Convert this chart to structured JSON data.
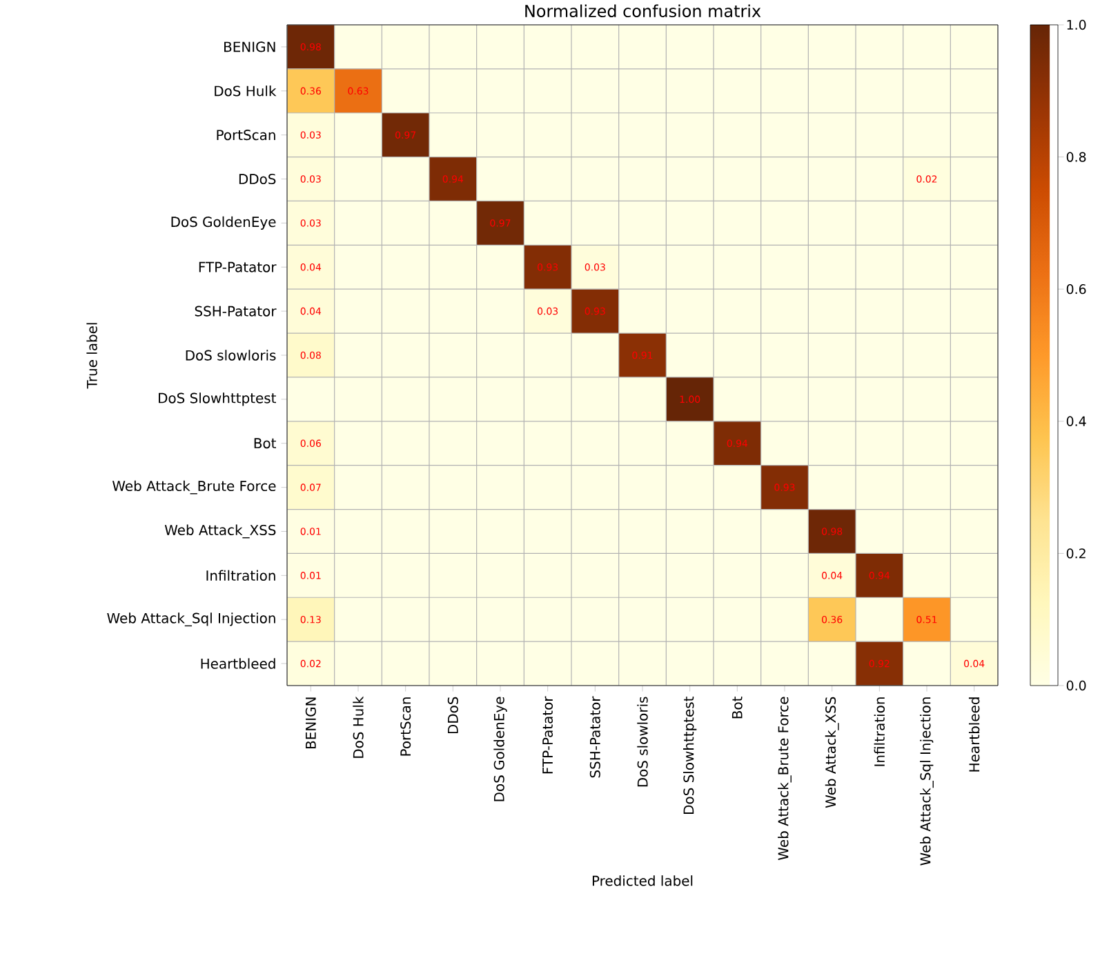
{
  "chart_data": {
    "type": "heatmap",
    "title": "Normalized confusion matrix",
    "xlabel": "Predicted label",
    "ylabel": "True label",
    "categories": [
      "BENIGN",
      "DoS Hulk",
      "PortScan",
      "DDoS",
      "DoS GoldenEye",
      "FTP-Patator",
      "SSH-Patator",
      "DoS slowloris",
      "DoS Slowhttptest",
      "Bot",
      "Web Attack_Brute Force",
      "Web Attack_XSS",
      "Infiltration",
      "Web Attack_Sql Injection",
      "Heartbleed"
    ],
    "y_categories": [
      "BENIGN",
      "DoS Hulk",
      "PortScan",
      "DDoS",
      "DoS GoldenEye",
      "FTP-Patator",
      "SSH-Patator",
      "DoS slowloris",
      "DoS Slowhttptest",
      "Bot",
      "Web Attack_Brute Force",
      "Web Attack_XSS",
      "Infiltration",
      "Web Attack_Sql Injection",
      "Heartbleed"
    ],
    "cells": [
      [
        0.98,
        0,
        0,
        0,
        0,
        0,
        0,
        0,
        0,
        0,
        0,
        0,
        0,
        0,
        0
      ],
      [
        0.36,
        0.63,
        0,
        0,
        0,
        0,
        0,
        0,
        0,
        0,
        0,
        0,
        0,
        0,
        0
      ],
      [
        0.03,
        0,
        0.97,
        0,
        0,
        0,
        0,
        0,
        0,
        0,
        0,
        0,
        0,
        0,
        0
      ],
      [
        0.03,
        0,
        0,
        0.94,
        0,
        0,
        0,
        0,
        0,
        0,
        0,
        0,
        0,
        0.02,
        0
      ],
      [
        0.03,
        0,
        0,
        0,
        0.97,
        0,
        0,
        0,
        0,
        0,
        0,
        0,
        0,
        0,
        0
      ],
      [
        0.04,
        0,
        0,
        0,
        0,
        0.93,
        0.03,
        0,
        0,
        0,
        0,
        0,
        0,
        0,
        0
      ],
      [
        0.04,
        0,
        0,
        0,
        0,
        0.03,
        0.93,
        0,
        0,
        0,
        0,
        0,
        0,
        0,
        0
      ],
      [
        0.08,
        0,
        0,
        0,
        0,
        0,
        0,
        0.91,
        0,
        0,
        0,
        0,
        0,
        0,
        0
      ],
      [
        0,
        0,
        0,
        0,
        0,
        0,
        0,
        0,
        1.0,
        0,
        0,
        0,
        0,
        0,
        0
      ],
      [
        0.06,
        0,
        0,
        0,
        0,
        0,
        0,
        0,
        0,
        0.94,
        0,
        0,
        0,
        0,
        0
      ],
      [
        0.07,
        0,
        0,
        0,
        0,
        0,
        0,
        0,
        0,
        0,
        0.93,
        0,
        0,
        0,
        0
      ],
      [
        0.01,
        0,
        0,
        0,
        0,
        0,
        0,
        0,
        0,
        0,
        0,
        0.98,
        0,
        0,
        0
      ],
      [
        0.01,
        0,
        0,
        0,
        0,
        0,
        0,
        0,
        0,
        0,
        0,
        0.04,
        0.94,
        0,
        0
      ],
      [
        0.13,
        0,
        0,
        0,
        0,
        0,
        0,
        0,
        0,
        0,
        0,
        0.36,
        0,
        0.51,
        0
      ],
      [
        0.02,
        0,
        0,
        0,
        0,
        0,
        0,
        0,
        0,
        0,
        0,
        0,
        0.92,
        0,
        0.04
      ]
    ],
    "cell_labels": [
      [
        "0.98",
        null,
        null,
        null,
        null,
        null,
        null,
        null,
        null,
        null,
        null,
        null,
        null,
        null,
        null
      ],
      [
        "0.36",
        "0.63",
        null,
        null,
        null,
        null,
        null,
        null,
        null,
        null,
        null,
        null,
        null,
        null,
        null
      ],
      [
        "0.03",
        null,
        "0.97",
        null,
        null,
        null,
        null,
        null,
        null,
        null,
        null,
        null,
        null,
        null,
        null
      ],
      [
        "0.03",
        null,
        null,
        "0.94",
        null,
        null,
        null,
        null,
        null,
        null,
        null,
        null,
        null,
        "0.02",
        null
      ],
      [
        "0.03",
        null,
        null,
        null,
        "0.97",
        null,
        null,
        null,
        null,
        null,
        null,
        null,
        null,
        null,
        null
      ],
      [
        "0.04",
        null,
        null,
        null,
        null,
        "0.93",
        "0.03",
        null,
        null,
        null,
        null,
        null,
        null,
        null,
        null
      ],
      [
        "0.04",
        null,
        null,
        null,
        null,
        "0.03",
        "0.93",
        null,
        null,
        null,
        null,
        null,
        null,
        null,
        null
      ],
      [
        "0.08",
        null,
        null,
        null,
        null,
        null,
        null,
        "0.91",
        null,
        null,
        null,
        null,
        null,
        null,
        null
      ],
      [
        null,
        null,
        null,
        null,
        null,
        null,
        null,
        null,
        "1.00",
        null,
        null,
        null,
        null,
        null,
        null
      ],
      [
        "0.06",
        null,
        null,
        null,
        null,
        null,
        null,
        null,
        null,
        "0.94",
        null,
        null,
        null,
        null,
        null
      ],
      [
        "0.07",
        null,
        null,
        null,
        null,
        null,
        null,
        null,
        null,
        null,
        "0.93",
        null,
        null,
        null,
        null
      ],
      [
        "0.01",
        null,
        null,
        null,
        null,
        null,
        null,
        null,
        null,
        null,
        null,
        "0.98",
        null,
        null,
        null
      ],
      [
        "0.01",
        null,
        null,
        null,
        null,
        null,
        null,
        null,
        null,
        null,
        null,
        "0.04",
        "0.94",
        null,
        null
      ],
      [
        "0.13",
        null,
        null,
        null,
        null,
        null,
        null,
        null,
        null,
        null,
        null,
        "0.36",
        null,
        "0.51",
        null
      ],
      [
        "0.02",
        null,
        null,
        null,
        null,
        null,
        null,
        null,
        null,
        null,
        null,
        null,
        "0.92",
        null,
        "0.04"
      ]
    ],
    "clim": [
      0,
      1
    ],
    "grid": true,
    "cticks": [
      {
        "value": 0,
        "label": "0.0"
      },
      {
        "value": 0.2,
        "label": "0.2"
      },
      {
        "value": 0.4,
        "label": "0.4"
      },
      {
        "value": 0.6,
        "label": "0.6"
      },
      {
        "value": 0.8,
        "label": "0.8"
      },
      {
        "value": 1.0,
        "label": "1.0"
      }
    ]
  }
}
